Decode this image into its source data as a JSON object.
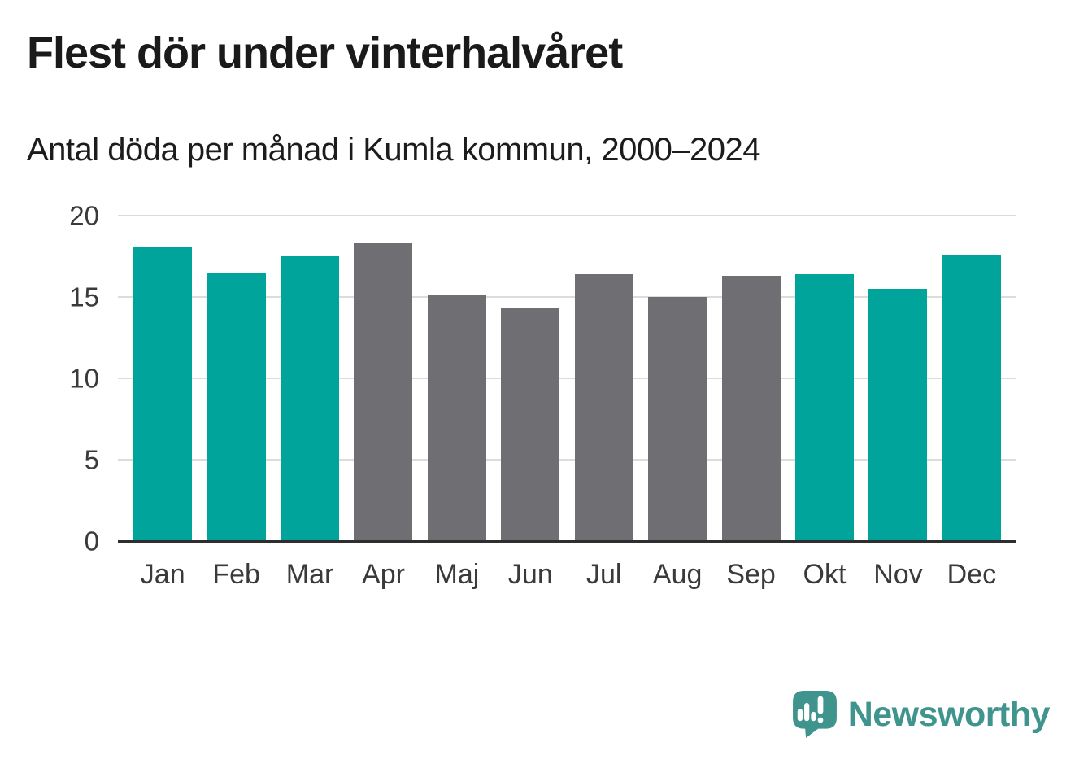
{
  "header": {
    "title": "Flest dör under vinterhalvåret",
    "subtitle": "Antal döda per månad i Kumla kommun, 2000–2024"
  },
  "chart_data": {
    "type": "bar",
    "categories": [
      "Jan",
      "Feb",
      "Mar",
      "Apr",
      "Maj",
      "Jun",
      "Jul",
      "Aug",
      "Sep",
      "Okt",
      "Nov",
      "Dec"
    ],
    "values": [
      18.1,
      16.5,
      17.5,
      18.3,
      15.1,
      14.3,
      16.4,
      15.0,
      16.3,
      16.4,
      15.5,
      17.6
    ],
    "bar_colors": [
      "#00a49b",
      "#00a49b",
      "#00a49b",
      "#6f6f73",
      "#6f6f73",
      "#6f6f73",
      "#6f6f73",
      "#6f6f73",
      "#6f6f73",
      "#00a49b",
      "#00a49b",
      "#00a49b"
    ],
    "title": "Flest dör under vinterhalvåret",
    "subtitle": "Antal döda per månad i Kumla kommun, 2000–2024",
    "xlabel": "",
    "ylabel": "",
    "ylim": [
      0,
      20
    ],
    "yticks": [
      0,
      5,
      10,
      15,
      20
    ],
    "grid": true,
    "legend": false,
    "highlight_meaning": "teal = winter half-year months (Okt–Mar), gray = summer half-year months (Apr–Sep)"
  },
  "colors": {
    "accent_teal": "#00a49b",
    "neutral_gray": "#6f6f73",
    "gridline": "#dcdcdc",
    "axis_line": "#2e2e2e",
    "brand_teal": "#3f948d"
  },
  "footer": {
    "brand": "Newsworthy",
    "logo_icon": "newsworthy-speech-bubble-chart-icon"
  }
}
